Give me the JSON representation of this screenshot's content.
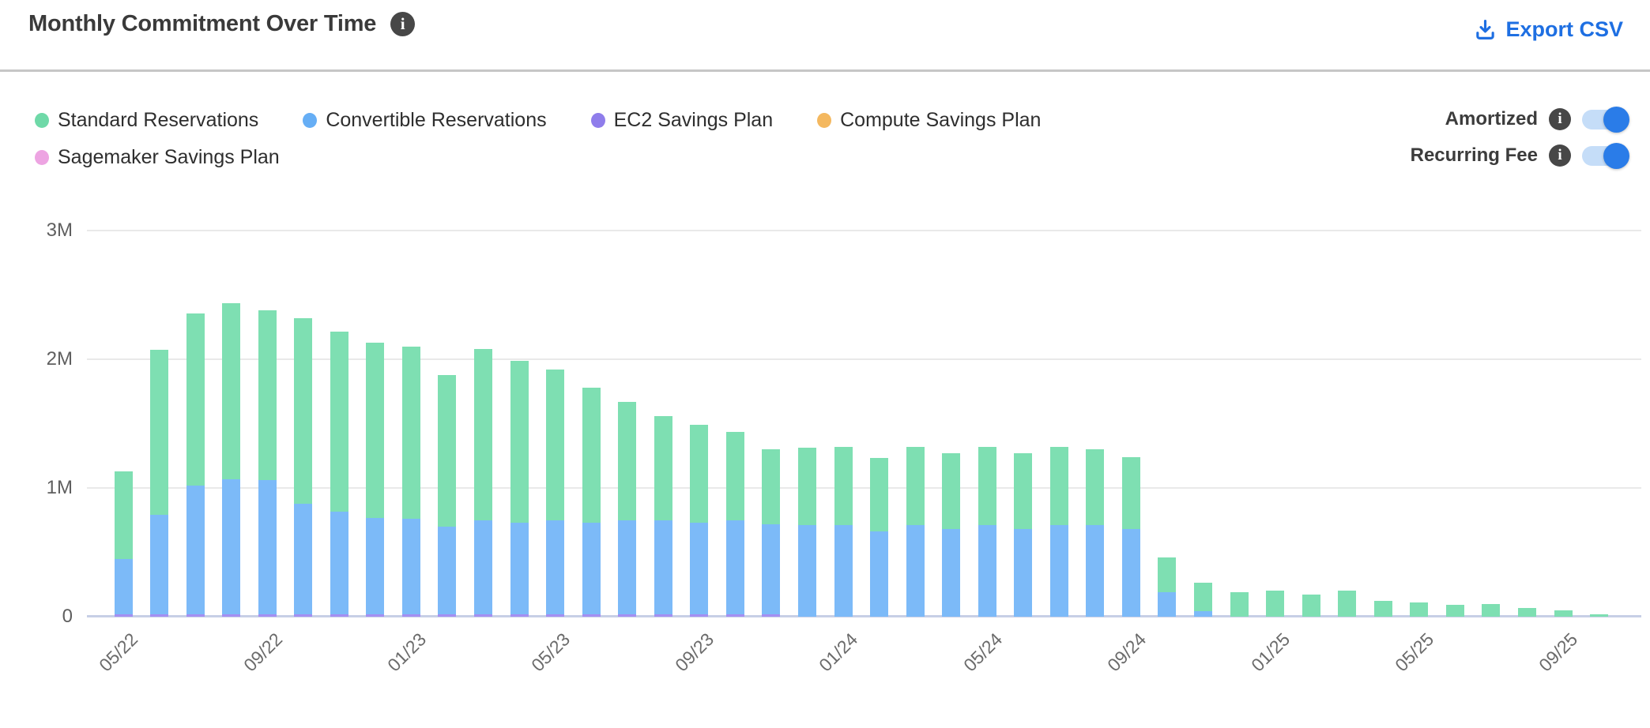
{
  "header": {
    "title": "Monthly Commitment Over Time",
    "export_label": "Export CSV"
  },
  "toggles": [
    {
      "label": "Amortized",
      "on": true
    },
    {
      "label": "Recurring Fee",
      "on": true
    }
  ],
  "colors": {
    "accent_blue": "#1e6fe2",
    "toggle_track": "#c5ddf8",
    "toggle_knob": "#2a7ce8",
    "info_icon_bg": "#474747",
    "gridline": "#e9e9e9",
    "baseline": "#c7cfe6",
    "axis_text": "#5f5f5f",
    "title_text": "#3a3a3a"
  },
  "chart_data": {
    "type": "bar",
    "stacked": true,
    "title": "Monthly Commitment Over Time",
    "xlabel": "",
    "ylabel": "",
    "ylim": [
      0,
      3
    ],
    "grid": "horizontal",
    "legend_position": "top-left",
    "y_ticks": [
      {
        "label": "0",
        "value": 0
      },
      {
        "label": "1M",
        "value": 1
      },
      {
        "label": "2M",
        "value": 2
      },
      {
        "label": "3M",
        "value": 3
      }
    ],
    "categories": [
      "05/22",
      "06/22",
      "07/22",
      "08/22",
      "09/22",
      "10/22",
      "11/22",
      "12/22",
      "01/23",
      "02/23",
      "03/23",
      "04/23",
      "05/23",
      "06/23",
      "07/23",
      "08/23",
      "09/23",
      "10/23",
      "11/23",
      "12/23",
      "01/24",
      "02/24",
      "03/24",
      "04/24",
      "05/24",
      "06/24",
      "07/24",
      "08/24",
      "09/24",
      "10/24",
      "11/24",
      "12/24",
      "01/25",
      "02/25",
      "03/25",
      "04/25",
      "05/25",
      "06/25",
      "07/25",
      "08/25",
      "09/25",
      "10/25"
    ],
    "x_tick_labels": [
      "05/22",
      "09/22",
      "01/23",
      "05/23",
      "09/23",
      "01/24",
      "05/24",
      "09/24",
      "01/25",
      "05/25",
      "09/25"
    ],
    "x_tick_every": 4,
    "unit_suffix": "M",
    "stack_order_bottom_up": [
      "EC2 Savings Plan",
      "Compute Savings Plan",
      "Sagemaker Savings Plan",
      "Convertible Reservations",
      "Standard Reservations"
    ],
    "series": [
      {
        "name": "Standard Reservations",
        "color": "#6fd9a8",
        "bar_color": "#7edfb2",
        "values": [
          0.68,
          1.28,
          1.34,
          1.37,
          1.32,
          1.44,
          1.4,
          1.36,
          1.34,
          1.18,
          1.33,
          1.26,
          1.17,
          1.05,
          0.92,
          0.81,
          0.76,
          0.69,
          0.58,
          0.6,
          0.61,
          0.57,
          0.61,
          0.59,
          0.61,
          0.59,
          0.61,
          0.59,
          0.56,
          0.27,
          0.22,
          0.19,
          0.2,
          0.17,
          0.2,
          0.12,
          0.11,
          0.09,
          0.1,
          0.07,
          0.05,
          0.02
        ]
      },
      {
        "name": "Convertible Reservations",
        "color": "#66aef5",
        "bar_color": "#7cbaf8",
        "values": [
          0.43,
          0.77,
          1.0,
          1.05,
          1.04,
          0.86,
          0.8,
          0.75,
          0.74,
          0.68,
          0.73,
          0.71,
          0.73,
          0.71,
          0.73,
          0.73,
          0.71,
          0.73,
          0.7,
          0.71,
          0.71,
          0.66,
          0.71,
          0.68,
          0.71,
          0.68,
          0.71,
          0.71,
          0.68,
          0.19,
          0.04,
          0,
          0,
          0,
          0,
          0,
          0,
          0,
          0,
          0,
          0,
          0
        ]
      },
      {
        "name": "EC2 Savings Plan",
        "color": "#8f7deb",
        "bar_color": "#a48ff2",
        "values": [
          0.02,
          0.02,
          0.02,
          0.02,
          0.02,
          0.02,
          0.02,
          0.02,
          0.02,
          0.02,
          0.02,
          0.02,
          0.02,
          0.02,
          0.02,
          0.02,
          0.02,
          0.02,
          0.02,
          0,
          0,
          0,
          0,
          0,
          0,
          0,
          0,
          0,
          0,
          0,
          0,
          0,
          0,
          0,
          0,
          0,
          0,
          0,
          0,
          0,
          0,
          0
        ]
      },
      {
        "name": "Compute Savings Plan",
        "color": "#f4b85f",
        "bar_color": "#f6c77e",
        "values": [
          0,
          0,
          0,
          0,
          0,
          0,
          0,
          0,
          0,
          0,
          0,
          0,
          0,
          0,
          0,
          0,
          0,
          0,
          0,
          0,
          0,
          0,
          0,
          0,
          0,
          0,
          0,
          0,
          0,
          0,
          0,
          0,
          0,
          0,
          0,
          0,
          0,
          0,
          0,
          0,
          0,
          0
        ]
      },
      {
        "name": "Sagemaker Savings Plan",
        "color": "#eda4e2",
        "bar_color": "#f2b5e8",
        "values": [
          0,
          0,
          0,
          0,
          0,
          0,
          0,
          0,
          0,
          0,
          0,
          0,
          0,
          0,
          0,
          0,
          0,
          0,
          0,
          0,
          0,
          0,
          0,
          0,
          0,
          0,
          0,
          0,
          0,
          0,
          0,
          0,
          0,
          0,
          0,
          0,
          0,
          0,
          0,
          0,
          0,
          0
        ]
      }
    ]
  }
}
